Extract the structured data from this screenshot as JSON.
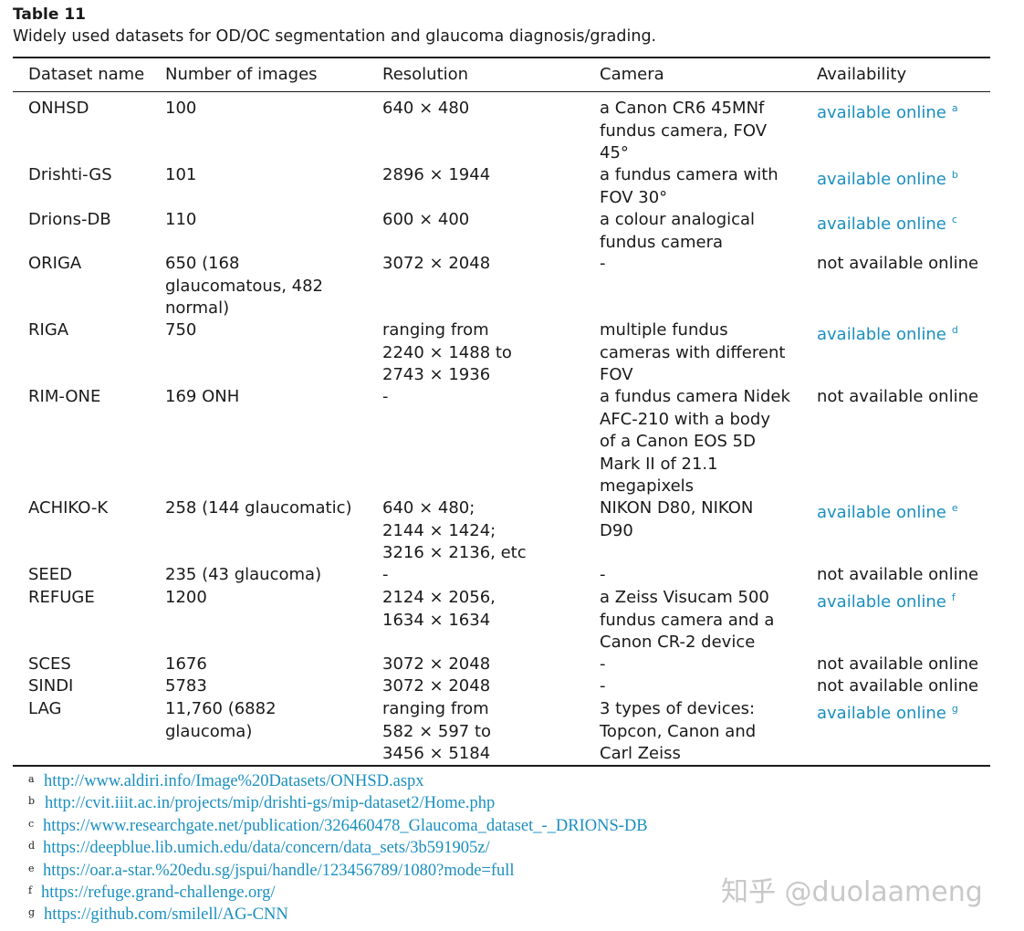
{
  "caption": {
    "title": "Table 11",
    "subtitle": "Widely used datasets for OD/OC segmentation and glaucoma diagnosis/grading."
  },
  "headers": [
    "Dataset name",
    "Number of images",
    "Resolution",
    "Camera",
    "Availability"
  ],
  "rows": [
    {
      "name": "ONHSD",
      "images": [
        "100"
      ],
      "resolution": [
        "640 × 480"
      ],
      "camera": [
        "a Canon CR6 45MNf",
        "fundus camera, FOV",
        "45°"
      ],
      "availability": "available online",
      "fn": "a",
      "online": true
    },
    {
      "name": "Drishti-GS",
      "images": [
        "101"
      ],
      "resolution": [
        "2896 × 1944"
      ],
      "camera": [
        "a fundus camera with",
        "FOV 30°"
      ],
      "availability": "available online",
      "fn": "b",
      "online": true
    },
    {
      "name": "Drions-DB",
      "images": [
        "110"
      ],
      "resolution": [
        "600 × 400"
      ],
      "camera": [
        "a colour analogical",
        "fundus camera"
      ],
      "availability": "available online",
      "fn": "c",
      "online": true
    },
    {
      "name": "ORIGA",
      "images": [
        "650 (168",
        "glaucomatous, 482",
        "normal)"
      ],
      "resolution": [
        "3072 × 2048"
      ],
      "camera": [
        "-"
      ],
      "availability": "not available online",
      "fn": "",
      "online": false
    },
    {
      "name": "RIGA",
      "images": [
        "750"
      ],
      "resolution": [
        "ranging from",
        "2240 × 1488 to",
        "2743 × 1936"
      ],
      "camera": [
        "multiple fundus",
        "cameras with different",
        "FOV"
      ],
      "availability": "available online",
      "fn": "d",
      "online": true
    },
    {
      "name": "RIM-ONE",
      "images": [
        "169 ONH"
      ],
      "resolution": [
        "-"
      ],
      "camera": [
        "a fundus camera Nidek",
        "AFC-210 with a body",
        "of a Canon EOS 5D",
        "Mark II of 21.1",
        "megapixels"
      ],
      "availability": "not available online",
      "fn": "",
      "online": false
    },
    {
      "name": "ACHIKO-K",
      "images": [
        "258 (144 glaucomatic)"
      ],
      "resolution": [
        "640 × 480;",
        "2144 × 1424;",
        "3216 × 2136, etc"
      ],
      "camera": [
        "NIKON D80, NIKON",
        "D90"
      ],
      "availability": "available online",
      "fn": "e",
      "online": true
    },
    {
      "name": "SEED",
      "images": [
        "235 (43 glaucoma)"
      ],
      "resolution": [
        "-"
      ],
      "camera": [
        "-"
      ],
      "availability": "not available online",
      "fn": "",
      "online": false
    },
    {
      "name": "REFUGE",
      "images": [
        "1200"
      ],
      "resolution": [
        "2124 × 2056,",
        "1634 × 1634"
      ],
      "camera": [
        "a Zeiss Visucam 500",
        "fundus camera and a",
        "Canon CR-2 device"
      ],
      "availability": "available online",
      "fn": "f",
      "online": true
    },
    {
      "name": "SCES",
      "images": [
        "1676"
      ],
      "resolution": [
        "3072 × 2048"
      ],
      "camera": [
        "-"
      ],
      "availability": "not available online",
      "fn": "",
      "online": false
    },
    {
      "name": "SINDI",
      "images": [
        "5783"
      ],
      "resolution": [
        "3072 × 2048"
      ],
      "camera": [
        "-"
      ],
      "availability": "not available online",
      "fn": "",
      "online": false
    },
    {
      "name": "LAG",
      "images": [
        "11,760 (6882",
        "glaucoma)"
      ],
      "resolution": [
        "ranging from",
        "582 × 597 to",
        "3456 × 5184"
      ],
      "camera": [
        "3 types of devices:",
        "Topcon, Canon and",
        "Carl Zeiss"
      ],
      "availability": "available online",
      "fn": "g",
      "online": true
    }
  ],
  "footnotes": [
    {
      "mark": "a",
      "url": "http://www.aldiri.info/Image%20Datasets/ONHSD.aspx"
    },
    {
      "mark": "b",
      "url": "http://cvit.iiit.ac.in/projects/mip/drishti-gs/mip-dataset2/Home.php"
    },
    {
      "mark": "c",
      "url": "https://www.researchgate.net/publication/326460478_Glaucoma_dataset_-_DRIONS-DB"
    },
    {
      "mark": "d",
      "url": "https://deepblue.lib.umich.edu/data/concern/data_sets/3b591905z/"
    },
    {
      "mark": "e",
      "url": "https://oar.a-star.%20edu.sg/jspui/handle/123456789/1080?mode=full"
    },
    {
      "mark": "f",
      "url": "https://refuge.grand-challenge.org/"
    },
    {
      "mark": "g",
      "url": "https://github.com/smilell/AG-CNN"
    }
  ],
  "watermark": "知乎 @duolaameng"
}
